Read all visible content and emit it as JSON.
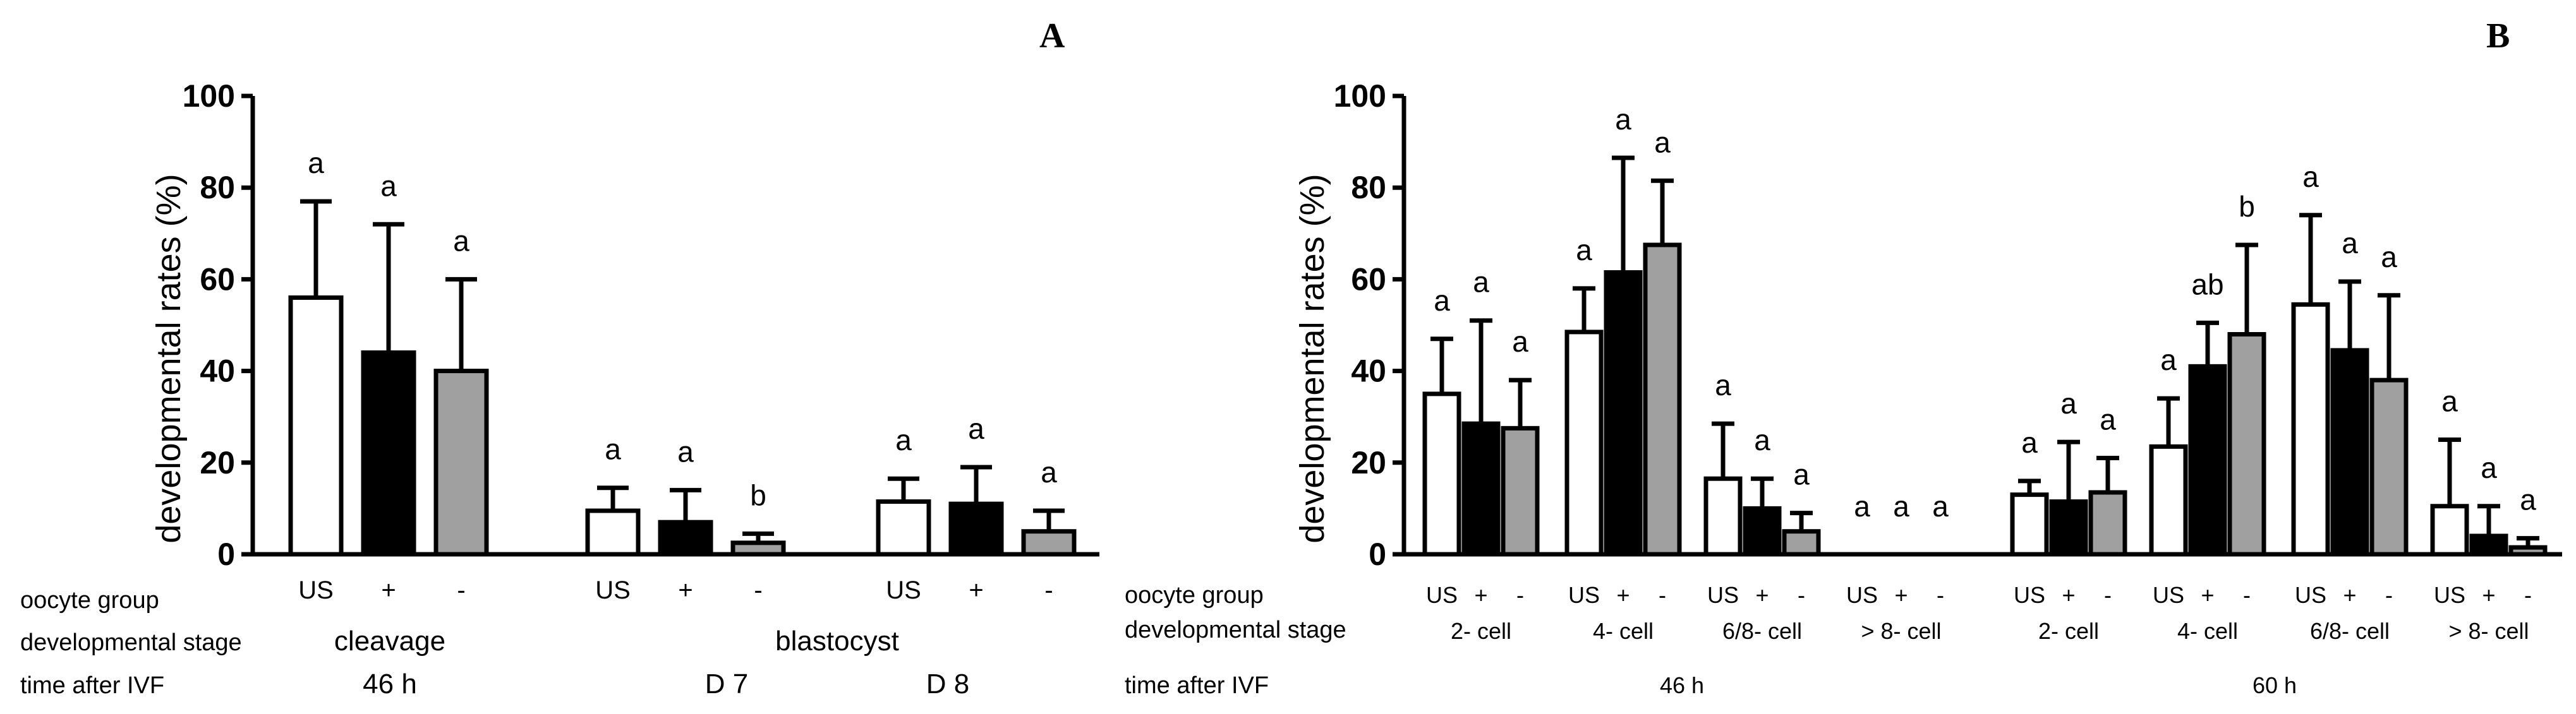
{
  "figure": {
    "panel_labels": [
      "A",
      "B"
    ],
    "row_labels": {
      "oocyte_group": "oocyte group",
      "developmental_stage": "developmental stage",
      "time_after_ivf": "time after IVF"
    }
  },
  "colors": {
    "US": "#ffffff",
    "plus": "#000000",
    "minus": "#a0a0a0",
    "outline": "#000000"
  },
  "chart_data": [
    {
      "panel": "A",
      "type": "bar",
      "ylabel": "developmental rates (%)",
      "ylim": [
        0,
        100
      ],
      "yticks": [
        "0",
        "20",
        "40",
        "60",
        "80",
        "100"
      ],
      "series_names": [
        "US",
        "+",
        "-"
      ],
      "groups": [
        {
          "oocyte_labels": [
            "US",
            "+",
            "-"
          ],
          "values": [
            56,
            44,
            40
          ],
          "errors": [
            21,
            28,
            20
          ],
          "sig": [
            "a",
            "a",
            "a"
          ]
        },
        {
          "oocyte_labels": [
            "US",
            "+",
            "-"
          ],
          "values": [
            9.5,
            7,
            2.5
          ],
          "errors": [
            5,
            7,
            2
          ],
          "sig": [
            "a",
            "a",
            "b"
          ]
        },
        {
          "oocyte_labels": [
            "US",
            "+",
            "-"
          ],
          "values": [
            11.5,
            11,
            5
          ],
          "errors": [
            5,
            8,
            4.5
          ],
          "sig": [
            "a",
            "a",
            "a"
          ]
        }
      ],
      "stage_labels": [
        "cleavage",
        "blastocyst"
      ],
      "time_labels": [
        "46 h",
        "D 7",
        "D 8"
      ]
    },
    {
      "panel": "B",
      "type": "bar",
      "ylabel": "developmental rates (%)",
      "ylim": [
        0,
        100
      ],
      "yticks": [
        "0",
        "20",
        "40",
        "60",
        "80",
        "100"
      ],
      "series_names": [
        "US",
        "+",
        "-"
      ],
      "groups": [
        {
          "stage": "2- cell",
          "oocyte_labels": [
            "US",
            "+",
            "-"
          ],
          "values": [
            35,
            28.5,
            27.5
          ],
          "errors": [
            12,
            22.5,
            10.5
          ],
          "sig": [
            "a",
            "a",
            "a"
          ]
        },
        {
          "stage": "4- cell",
          "oocyte_labels": [
            "US",
            "+",
            "-"
          ],
          "values": [
            48.5,
            61.5,
            67.5
          ],
          "errors": [
            9.5,
            25,
            14
          ],
          "sig": [
            "a",
            "a",
            "a"
          ]
        },
        {
          "stage": "6/8- cell",
          "oocyte_labels": [
            "US",
            "+",
            "-"
          ],
          "values": [
            16.5,
            10,
            5
          ],
          "errors": [
            12,
            6.5,
            4
          ],
          "sig": [
            "a",
            "a",
            "a"
          ]
        },
        {
          "stage": "> 8- cell",
          "oocyte_labels": [
            "US",
            "+",
            "-"
          ],
          "values": [
            0,
            0,
            0
          ],
          "errors": [
            0,
            0,
            0
          ],
          "sig": [
            "a",
            "a",
            "a"
          ]
        },
        {
          "stage": "2- cell",
          "oocyte_labels": [
            "US",
            "+",
            "-"
          ],
          "values": [
            13,
            11.5,
            13.5
          ],
          "errors": [
            3,
            13,
            7.5
          ],
          "sig": [
            "a",
            "a",
            "a"
          ]
        },
        {
          "stage": "4- cell",
          "oocyte_labels": [
            "US",
            "+",
            "-"
          ],
          "values": [
            23.5,
            41,
            48
          ],
          "errors": [
            10.5,
            9.5,
            19.5
          ],
          "sig": [
            "a",
            "ab",
            "b"
          ]
        },
        {
          "stage": "6/8- cell",
          "oocyte_labels": [
            "US",
            "+",
            "-"
          ],
          "values": [
            54.5,
            44.5,
            38
          ],
          "errors": [
            19.5,
            15,
            18.5
          ],
          "sig": [
            "a",
            "a",
            "a"
          ]
        },
        {
          "stage": "> 8- cell",
          "oocyte_labels": [
            "US",
            "+",
            "-"
          ],
          "values": [
            10.5,
            4,
            1.5
          ],
          "errors": [
            14.5,
            6.5,
            2
          ],
          "sig": [
            "a",
            "a",
            "a"
          ]
        }
      ],
      "time_labels": [
        "46 h",
        "60 h"
      ]
    }
  ]
}
